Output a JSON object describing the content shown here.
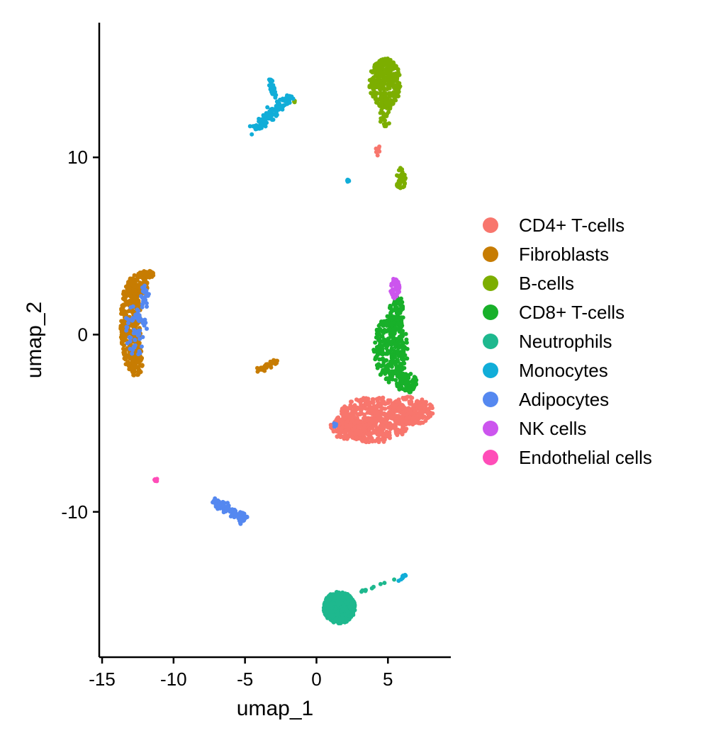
{
  "chart_data": {
    "type": "scatter",
    "title": "",
    "xlabel": "umap_1",
    "ylabel": "umap_2",
    "xlim": [
      -15.2,
      9.4
    ],
    "ylim": [
      -18.2,
      17.6
    ],
    "xticks": [
      -15,
      -10,
      -5,
      0,
      5
    ],
    "yticks": [
      10,
      0,
      -10
    ],
    "xtick_labels": [
      "-15",
      "-10",
      "-5",
      "0",
      "5"
    ],
    "ytick_labels": [
      "10",
      "0",
      "-10"
    ],
    "grid": false,
    "legend_position": "right",
    "series": [
      {
        "name": "CD4+ T-cells",
        "color": "#F8766D",
        "clusters": [
          {
            "shape": "ellipse",
            "cx": 4.0,
            "cy": -4.8,
            "rx": 2.6,
            "ry": 1.3,
            "n": 520
          },
          {
            "shape": "ellipse",
            "cx": 6.6,
            "cy": -4.3,
            "rx": 1.6,
            "ry": 0.8,
            "n": 200
          },
          {
            "shape": "ellipse",
            "cx": 2.2,
            "cy": -5.3,
            "rx": 1.3,
            "ry": 0.6,
            "n": 140
          },
          {
            "shape": "ellipse",
            "cx": 4.3,
            "cy": 10.4,
            "rx": 0.15,
            "ry": 0.3,
            "n": 10
          }
        ]
      },
      {
        "name": "Fibroblasts",
        "color": "#C77C02",
        "clusters": [
          {
            "shape": "ellipse",
            "cx": -13.0,
            "cy": 0.6,
            "rx": 0.7,
            "ry": 2.6,
            "n": 340
          },
          {
            "shape": "ellipse",
            "cx": -12.5,
            "cy": 2.8,
            "rx": 0.7,
            "ry": 0.6,
            "n": 120
          },
          {
            "shape": "ellipse",
            "cx": -12.6,
            "cy": -1.5,
            "rx": 0.45,
            "ry": 0.9,
            "n": 90
          },
          {
            "shape": "ellipse",
            "cx": -11.9,
            "cy": 3.4,
            "rx": 0.6,
            "ry": 0.2,
            "n": 50
          },
          {
            "shape": "line",
            "x0": -4.2,
            "y0": -2.1,
            "x1": -2.8,
            "y1": -1.5,
            "w": 0.15,
            "n": 40
          }
        ]
      },
      {
        "name": "B-cells",
        "color": "#7CAE00",
        "clusters": [
          {
            "shape": "ellipse",
            "cx": 4.8,
            "cy": 14.2,
            "rx": 1.1,
            "ry": 1.4,
            "n": 320
          },
          {
            "shape": "ellipse",
            "cx": 4.8,
            "cy": 12.5,
            "rx": 0.4,
            "ry": 0.9,
            "n": 40
          },
          {
            "shape": "ellipse",
            "cx": 5.9,
            "cy": 8.8,
            "rx": 0.35,
            "ry": 0.6,
            "n": 50
          },
          {
            "shape": "ellipse",
            "cx": -1.5,
            "cy": 13.2,
            "rx": 0.1,
            "ry": 0.1,
            "n": 3
          }
        ]
      },
      {
        "name": "CD8+ T-cells",
        "color": "#18B02A",
        "clusters": [
          {
            "shape": "ellipse",
            "cx": 5.2,
            "cy": -0.8,
            "rx": 1.2,
            "ry": 1.9,
            "n": 320
          },
          {
            "shape": "ellipse",
            "cx": 5.6,
            "cy": 1.2,
            "rx": 0.5,
            "ry": 1.1,
            "n": 80
          },
          {
            "shape": "ellipse",
            "cx": 6.3,
            "cy": -2.7,
            "rx": 0.7,
            "ry": 0.6,
            "n": 80
          }
        ]
      },
      {
        "name": "Neutrophils",
        "color": "#1EB88E",
        "clusters": [
          {
            "shape": "ellipse",
            "cx": 1.6,
            "cy": -15.4,
            "rx": 1.1,
            "ry": 0.9,
            "n": 460
          },
          {
            "shape": "line",
            "x0": 2.8,
            "y0": -14.6,
            "x1": 5.4,
            "y1": -13.8,
            "w": 0.1,
            "n": 10
          }
        ]
      },
      {
        "name": "Monocytes",
        "color": "#11ADD8",
        "clusters": [
          {
            "shape": "line",
            "x0": -4.3,
            "y0": 11.6,
            "x1": -2.0,
            "y1": 13.3,
            "w": 0.35,
            "n": 120
          },
          {
            "shape": "line",
            "x0": -3.0,
            "y0": 13.5,
            "x1": -3.2,
            "y1": 14.4,
            "w": 0.2,
            "n": 30
          },
          {
            "shape": "ellipse",
            "cx": 2.2,
            "cy": 8.7,
            "rx": 0.12,
            "ry": 0.08,
            "n": 6
          },
          {
            "shape": "line",
            "x0": 5.7,
            "y0": -13.9,
            "x1": 6.3,
            "y1": -13.5,
            "w": 0.1,
            "n": 8
          }
        ]
      },
      {
        "name": "Adipocytes",
        "color": "#5588F0",
        "clusters": [
          {
            "shape": "ellipse",
            "cx": -12.6,
            "cy": 0.3,
            "rx": 0.8,
            "ry": 1.5,
            "n": 60
          },
          {
            "shape": "ellipse",
            "cx": -12.0,
            "cy": 2.2,
            "rx": 0.3,
            "ry": 0.7,
            "n": 20
          },
          {
            "shape": "line",
            "x0": -7.2,
            "y0": -9.4,
            "x1": -5.0,
            "y1": -10.4,
            "w": 0.25,
            "n": 100
          },
          {
            "shape": "ellipse",
            "cx": -5.2,
            "cy": -10.3,
            "rx": 0.35,
            "ry": 0.25,
            "n": 40
          },
          {
            "shape": "ellipse",
            "cx": 1.3,
            "cy": -5.1,
            "rx": 0.08,
            "ry": 0.15,
            "n": 4
          }
        ]
      },
      {
        "name": "NK cells",
        "color": "#CC55EE",
        "clusters": [
          {
            "shape": "ellipse",
            "cx": 5.5,
            "cy": 2.6,
            "rx": 0.32,
            "ry": 0.6,
            "n": 60
          }
        ]
      },
      {
        "name": "Endothelial cells",
        "color": "#FF4DB8",
        "clusters": [
          {
            "shape": "ellipse",
            "cx": -11.2,
            "cy": -8.2,
            "rx": 0.15,
            "ry": 0.08,
            "n": 8
          }
        ]
      }
    ]
  }
}
